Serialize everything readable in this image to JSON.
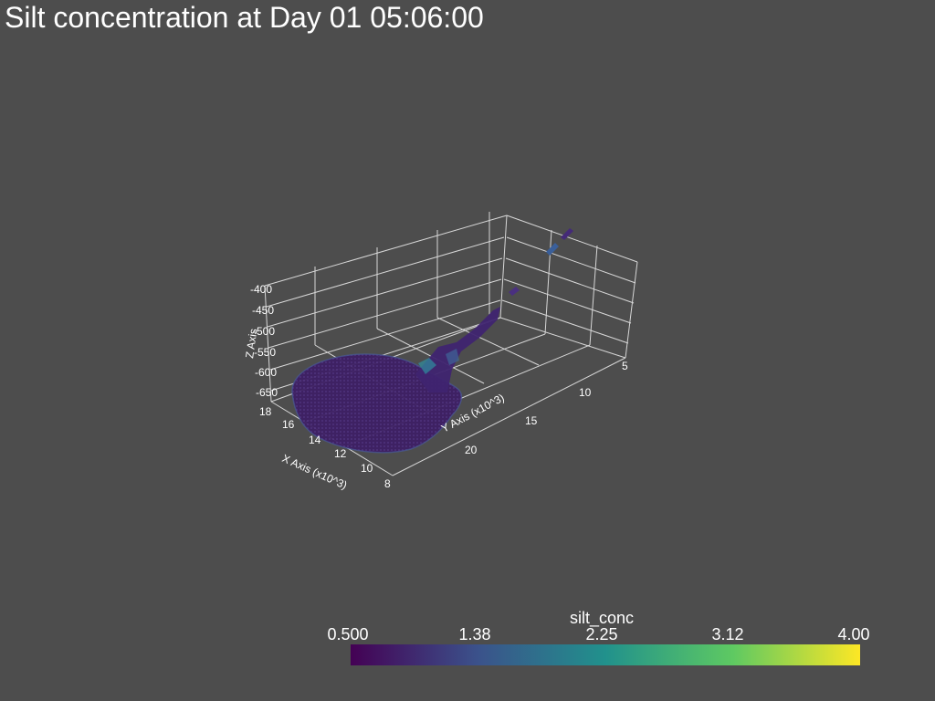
{
  "title": "Silt concentration at Day 01 05:06:00",
  "axes": {
    "x_label": "X Axis (x10^3)",
    "y_label": "Y Axis (x10^3)",
    "z_label": "Z Axis",
    "x_ticks": [
      "18",
      "16",
      "14",
      "12",
      "10",
      "8"
    ],
    "y_ticks": [
      "5",
      "10",
      "15",
      "20"
    ],
    "z_ticks": [
      "-400",
      "-450",
      "-500",
      "-550",
      "-600",
      "-650"
    ]
  },
  "colorbar": {
    "title": "silt_conc",
    "min": 0.5,
    "max": 4.0,
    "tick_labels": [
      "0.500",
      "1.38",
      "2.25",
      "3.12",
      "4.00"
    ],
    "colormap": "viridis",
    "colors": [
      "#440154",
      "#3b528b",
      "#21918c",
      "#5ec962",
      "#fde725"
    ]
  },
  "colors": {
    "background": "#4d4d4d",
    "grid": "#d9d9d9",
    "text": "#ffffff",
    "plume": "#3a1f5c"
  }
}
